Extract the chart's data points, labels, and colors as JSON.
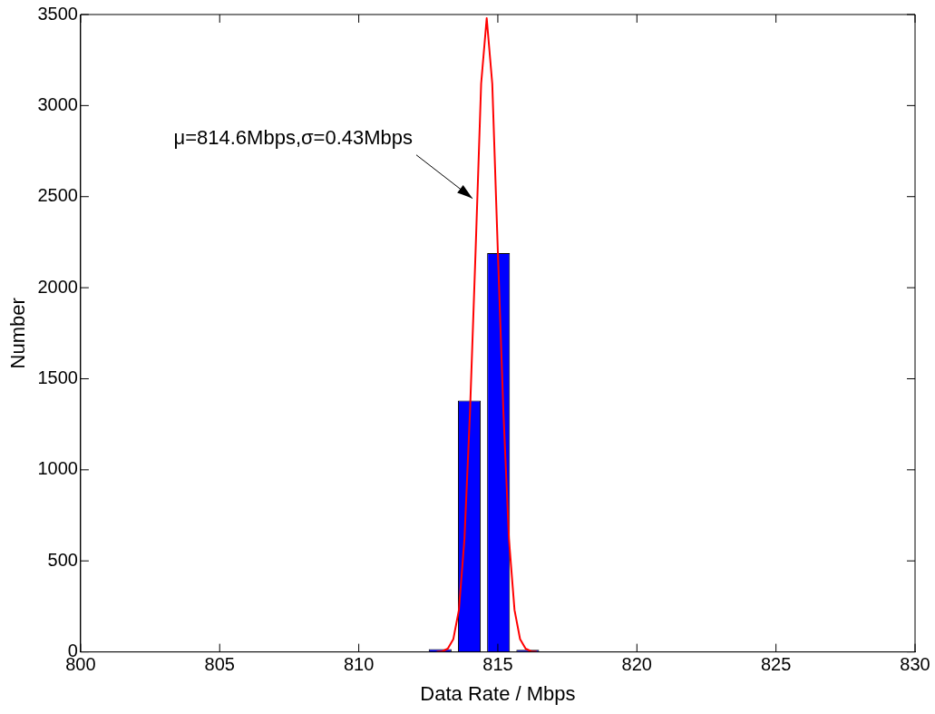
{
  "chart_data": {
    "type": "histogram",
    "xlabel": "Data Rate / Mbps",
    "ylabel": "Number",
    "bins": [
      812.4,
      813.45,
      814.5,
      815.55,
      816.6,
      817.65
    ],
    "values": [
      15,
      1380,
      2190,
      12,
      3
    ],
    "color": "#0000ff",
    "series": [
      {
        "type": "line",
        "color": "#ff0000",
        "x": [
          812.8,
          813.0,
          813.2,
          813.4,
          813.6,
          813.8,
          814.0,
          814.2,
          814.4,
          814.6,
          814.8,
          815.0,
          815.2,
          815.4,
          815.6,
          815.8,
          816.0,
          816.2,
          816.4
        ],
        "values": [
          0,
          3,
          18,
          70,
          230,
          620,
          1320,
          2200,
          3120,
          3480,
          3120,
          2200,
          1320,
          620,
          230,
          70,
          18,
          3,
          0
        ]
      }
    ],
    "annotations": [
      {
        "text": "μ=814.6Mbps,σ=0.43Mbps",
        "x": 814.09,
        "y": 2490
      }
    ],
    "xlim": [
      800,
      830
    ],
    "xticks": [
      800,
      805,
      810,
      815,
      820,
      825,
      830
    ],
    "ylim": [
      0,
      3500
    ],
    "yticks": [
      0,
      500,
      1000,
      1500,
      2000,
      2500,
      3000,
      3500
    ],
    "grid": false,
    "legend": false,
    "marker": "none",
    "line_style": "solid"
  }
}
